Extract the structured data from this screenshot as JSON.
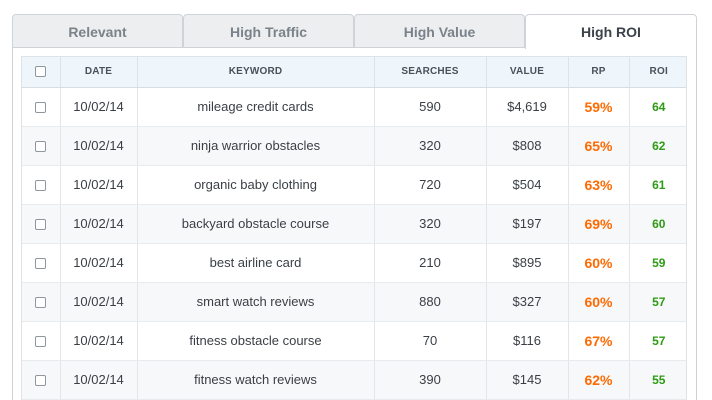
{
  "tabs": [
    "Relevant",
    "High Traffic",
    "High Value",
    "High ROI"
  ],
  "active_tab": "High ROI",
  "columns": {
    "date": "DATE",
    "keyword": "KEYWORD",
    "searches": "SEARCHES",
    "value": "VALUE",
    "rp": "RP",
    "roi": "ROI"
  },
  "rows": [
    {
      "date": "10/02/14",
      "keyword": "mileage credit cards",
      "searches": "590",
      "value": "$4,619",
      "rp": "59%",
      "roi": "64"
    },
    {
      "date": "10/02/14",
      "keyword": "ninja warrior obstacles",
      "searches": "320",
      "value": "$808",
      "rp": "65%",
      "roi": "62"
    },
    {
      "date": "10/02/14",
      "keyword": "organic baby clothing",
      "searches": "720",
      "value": "$504",
      "rp": "63%",
      "roi": "61"
    },
    {
      "date": "10/02/14",
      "keyword": "backyard obstacle course",
      "searches": "320",
      "value": "$197",
      "rp": "69%",
      "roi": "60"
    },
    {
      "date": "10/02/14",
      "keyword": "best airline card",
      "searches": "210",
      "value": "$895",
      "rp": "60%",
      "roi": "59"
    },
    {
      "date": "10/02/14",
      "keyword": "smart watch reviews",
      "searches": "880",
      "value": "$327",
      "rp": "60%",
      "roi": "57"
    },
    {
      "date": "10/02/14",
      "keyword": "fitness obstacle course",
      "searches": "70",
      "value": "$116",
      "rp": "67%",
      "roi": "57"
    },
    {
      "date": "10/02/14",
      "keyword": "fitness watch reviews",
      "searches": "390",
      "value": "$145",
      "rp": "62%",
      "roi": "55"
    }
  ],
  "colors": {
    "rp": "#ff6a00",
    "roi": "#2d9c14",
    "header_bg": "#eef6fb"
  }
}
